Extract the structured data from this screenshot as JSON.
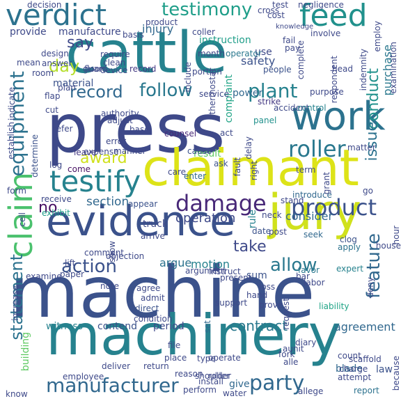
{
  "words": [
    {
      "text": "machine",
      "color": "#3b528b"
    },
    {
      "text": "press",
      "color": "#3e4989"
    },
    {
      "text": "cattle",
      "color": "#26828e"
    },
    {
      "text": "machinery",
      "color": "#26828e"
    },
    {
      "text": "claimant",
      "color": "#dde318"
    },
    {
      "text": "evidence",
      "color": "#3b528b"
    },
    {
      "text": "jury",
      "color": "#d0e11c"
    },
    {
      "text": "work",
      "color": "#2c728e"
    },
    {
      "text": "claim",
      "color": "#4ac16d"
    },
    {
      "text": "verdict",
      "color": "#2c728e"
    },
    {
      "text": "feed",
      "color": "#21918c"
    },
    {
      "text": "testify",
      "color": "#26828e"
    },
    {
      "text": "product",
      "color": "#3b528b"
    },
    {
      "text": "damage",
      "color": "#482878"
    },
    {
      "text": "manufacturer",
      "color": "#31688e"
    },
    {
      "text": "testimony",
      "color": "#1f9e89"
    },
    {
      "text": "roller",
      "color": "#2a788e"
    },
    {
      "text": "plant",
      "color": "#26828e"
    },
    {
      "text": "equipment",
      "color": "#2c728e"
    },
    {
      "text": "allow",
      "color": "#2a788e"
    },
    {
      "text": "party",
      "color": "#31688e"
    },
    {
      "text": "follow",
      "color": "#2a788e"
    },
    {
      "text": "record",
      "color": "#31688e"
    },
    {
      "text": "action",
      "color": "#3b528b"
    },
    {
      "text": "take",
      "color": "#3e4989"
    },
    {
      "text": "award",
      "color": "#d0e11c"
    },
    {
      "text": "conduct",
      "color": "#21918c"
    },
    {
      "text": "issue",
      "color": "#2c728e"
    },
    {
      "text": "feature",
      "color": "#31688e"
    },
    {
      "text": "statement",
      "color": "#2c728e"
    },
    {
      "text": "day",
      "color": "#b5de2b"
    },
    {
      "text": "say",
      "color": "#3e4989"
    },
    {
      "text": "no",
      "color": "#471063"
    },
    {
      "text": "contract",
      "color": "#2a788e"
    },
    {
      "text": "section",
      "color": "#31688e"
    },
    {
      "text": "purchase",
      "color": "#2a788e"
    },
    {
      "text": "operation",
      "color": "#3e4989"
    },
    {
      "text": "consider",
      "color": "#31688e"
    },
    {
      "text": "motion",
      "color": "#26828e"
    },
    {
      "text": "argue",
      "color": "#2c728e"
    },
    {
      "text": "agreement",
      "color": "#31688e"
    },
    {
      "text": "safety",
      "color": "#3b528b"
    },
    {
      "text": "complaint",
      "color": "#20a486"
    },
    {
      "text": "result",
      "color": "#5ec962"
    },
    {
      "text": "injury",
      "color": "#31688e"
    },
    {
      "text": "instruction",
      "color": "#1f9e89"
    },
    {
      "text": "provide",
      "color": "#3e4989"
    },
    {
      "text": "manufacture",
      "color": "#3e4989"
    },
    {
      "text": "rule",
      "color": "#26828e"
    },
    {
      "text": "witness",
      "color": "#26828e"
    },
    {
      "text": "contend",
      "color": "#3b528b"
    },
    {
      "text": "period",
      "color": "#3e4989"
    },
    {
      "text": "truck",
      "color": "#3e4989"
    },
    {
      "text": "sum",
      "color": "#3b528b"
    },
    {
      "text": "blade",
      "color": "#31688e"
    },
    {
      "text": "law",
      "color": "#3b528b"
    },
    {
      "text": "give",
      "color": "#31688e"
    },
    {
      "text": "set",
      "color": "#31688e"
    },
    {
      "text": "exhibit",
      "color": "#1f9e89"
    },
    {
      "text": "building",
      "color": "#5ec962"
    },
    {
      "text": "material",
      "color": "#3b528b"
    },
    {
      "text": "use",
      "color": "#3e4989"
    },
    {
      "text": "determine",
      "color": "#3b528b"
    },
    {
      "text": "record",
      "color": "#443983"
    },
    {
      "text": "power",
      "color": "#31688e"
    },
    {
      "text": "operator",
      "color": "#2a788e"
    },
    {
      "text": "people",
      "color": "#3b528b"
    },
    {
      "text": "report",
      "color": "#2c728e"
    },
    {
      "text": "accident",
      "color": "#3e4989"
    },
    {
      "text": "control",
      "color": "#26828e"
    },
    {
      "text": "involve",
      "color": "#3e4989"
    },
    {
      "text": "cause",
      "color": "#3b528b"
    },
    {
      "text": "counsel",
      "color": "#482878"
    },
    {
      "text": "leave",
      "color": "#443983"
    },
    {
      "text": "base",
      "color": "#3e4989"
    },
    {
      "text": "act",
      "color": "#3e4989"
    },
    {
      "text": "strike",
      "color": "#443983"
    },
    {
      "text": "panel",
      "color": "#21918c"
    },
    {
      "text": "come",
      "color": "#471063"
    },
    {
      "text": "log",
      "color": "#3e4989"
    },
    {
      "text": "enter",
      "color": "#31688e"
    },
    {
      "text": "ask",
      "color": "#3b528b"
    },
    {
      "text": "seek",
      "color": "#31688e"
    },
    {
      "text": "introduce",
      "color": "#31688e"
    },
    {
      "text": "post",
      "color": "#3e4989"
    },
    {
      "text": "date",
      "color": "#3b528b"
    },
    {
      "text": "clog",
      "color": "#3b528b"
    },
    {
      "text": "apply",
      "color": "#2c728e"
    },
    {
      "text": "expert",
      "color": "#26828e"
    },
    {
      "text": "favor",
      "color": "#2a788e"
    },
    {
      "text": "instruct",
      "color": "#3e4989"
    },
    {
      "text": "argument",
      "color": "#3e4989"
    },
    {
      "text": "appear",
      "color": "#3b528b"
    },
    {
      "text": "arrive",
      "color": "#3e4989"
    },
    {
      "text": "paper",
      "color": "#3e4989"
    },
    {
      "text": "lift",
      "color": "#3e4989"
    },
    {
      "text": "note",
      "color": "#3e4989"
    },
    {
      "text": "agree",
      "color": "#3e4989"
    },
    {
      "text": "admit",
      "color": "#3e4989"
    },
    {
      "text": "direct",
      "color": "#3b528b"
    },
    {
      "text": "condition",
      "color": "#3e4989"
    },
    {
      "text": "support",
      "color": "#3e4989"
    },
    {
      "text": "hand",
      "color": "#3e4989"
    },
    {
      "text": "loss",
      "color": "#3e4989"
    },
    {
      "text": "prove",
      "color": "#3e4989"
    },
    {
      "text": "bar",
      "color": "#3e4989"
    },
    {
      "text": "liability",
      "color": "#20a486"
    },
    {
      "text": "request",
      "color": "#3e4989"
    },
    {
      "text": "labor",
      "color": "#3e4989"
    },
    {
      "text": "deny",
      "color": "#3e4989"
    },
    {
      "text": "file",
      "color": "#3e4989"
    },
    {
      "text": "place",
      "color": "#3e4989"
    },
    {
      "text": "type",
      "color": "#3e4989"
    },
    {
      "text": "count",
      "color": "#3e4989"
    },
    {
      "text": "charge",
      "color": "#3e4989"
    },
    {
      "text": "diary",
      "color": "#3e4989"
    },
    {
      "text": "attempt",
      "color": "#3e4989"
    },
    {
      "text": "deliver",
      "color": "#3e4989"
    },
    {
      "text": "return",
      "color": "#3e4989"
    },
    {
      "text": "reason",
      "color": "#3e4989"
    },
    {
      "text": "shoulder",
      "color": "#3e4989"
    },
    {
      "text": "operate",
      "color": "#3e4989"
    },
    {
      "text": "allege",
      "color": "#3e4989"
    },
    {
      "text": "perform",
      "color": "#3e4989"
    },
    {
      "text": "water",
      "color": "#3e4989"
    },
    {
      "text": "plan",
      "color": "#3e4989"
    },
    {
      "text": "design",
      "color": "#3e4989"
    },
    {
      "text": "require",
      "color": "#3e4989"
    },
    {
      "text": "clean",
      "color": "#3e4989"
    },
    {
      "text": "device",
      "color": "#3e4989"
    },
    {
      "text": "include",
      "color": "#3e4989"
    },
    {
      "text": "portion",
      "color": "#3e4989"
    },
    {
      "text": "month",
      "color": "#3e4989"
    },
    {
      "text": "service",
      "color": "#3e4989"
    },
    {
      "text": "coller",
      "color": "#3e4989"
    },
    {
      "text": "pay",
      "color": "#3e4989"
    },
    {
      "text": "fail",
      "color": "#3e4989"
    },
    {
      "text": "complete",
      "color": "#3e4989"
    },
    {
      "text": "respondent",
      "color": "#3e4989"
    },
    {
      "text": "head",
      "color": "#3e4989"
    },
    {
      "text": "indemnity",
      "color": "#3e4989"
    },
    {
      "text": "purpose",
      "color": "#3e4989"
    },
    {
      "text": "thermostat",
      "color": "#3e4989"
    },
    {
      "text": "employ",
      "color": "#3e4989"
    },
    {
      "text": "examination",
      "color": "#3e4989"
    },
    {
      "text": "basis",
      "color": "#3e4989"
    },
    {
      "text": "test",
      "color": "#3e4989"
    },
    {
      "text": "negligence",
      "color": "#3e4989"
    },
    {
      "text": "cross",
      "color": "#3e4989"
    },
    {
      "text": "decision",
      "color": "#3e4989"
    },
    {
      "text": "indicate",
      "color": "#3e4989"
    },
    {
      "text": "establish",
      "color": "#3e4989"
    },
    {
      "text": "authority",
      "color": "#3e4989"
    },
    {
      "text": "adjust",
      "color": "#3e4989"
    },
    {
      "text": "error",
      "color": "#3e4989"
    },
    {
      "text": "delay",
      "color": "#3e4989"
    },
    {
      "text": "fault",
      "color": "#3e4989"
    },
    {
      "text": "right",
      "color": "#3e4989"
    },
    {
      "text": "matter",
      "color": "#3e4989"
    },
    {
      "text": "hour",
      "color": "#3e4989"
    },
    {
      "text": "go",
      "color": "#3e4989"
    },
    {
      "text": "form",
      "color": "#3e4989"
    },
    {
      "text": "present",
      "color": "#3e4989"
    },
    {
      "text": "fork",
      "color": "#3e4989"
    },
    {
      "text": "employee",
      "color": "#3e4989"
    },
    {
      "text": "scaffold",
      "color": "#3e4989"
    },
    {
      "text": "because",
      "color": "#3e4989"
    },
    {
      "text": "know",
      "color": "#3e4989"
    },
    {
      "text": "increase",
      "color": "#3e4989"
    },
    {
      "text": "examine",
      "color": "#3e4989"
    },
    {
      "text": "show",
      "color": "#3e4989"
    },
    {
      "text": "neck",
      "color": "#3e4989"
    },
    {
      "text": "receive",
      "color": "#3e4989"
    },
    {
      "text": "knowledge",
      "color": "#3e4989"
    },
    {
      "text": "mean",
      "color": "#3e4989"
    },
    {
      "text": "cell",
      "color": "#3e4989"
    },
    {
      "text": "house",
      "color": "#3e4989"
    },
    {
      "text": "grant",
      "color": "#3e4989"
    },
    {
      "text": "stand",
      "color": "#3e4989"
    },
    {
      "text": "comment",
      "color": "#3e4989"
    },
    {
      "text": "objection",
      "color": "#3e4989"
    },
    {
      "text": "install",
      "color": "#3e4989"
    },
    {
      "text": "guard",
      "color": "#3e4989"
    },
    {
      "text": "floor",
      "color": "#3e4989"
    },
    {
      "text": "flap",
      "color": "#3e4989"
    },
    {
      "text": "care",
      "color": "#3e4989"
    },
    {
      "text": "term",
      "color": "#3e4989"
    },
    {
      "text": "expense",
      "color": "#3e4989"
    },
    {
      "text": "manner",
      "color": "#3e4989"
    },
    {
      "text": "refer",
      "color": "#3e4989"
    },
    {
      "text": "product",
      "color": "#3e4989"
    },
    {
      "text": "room",
      "color": "#3e4989"
    },
    {
      "text": "answer",
      "color": "#3e4989"
    },
    {
      "text": "cut",
      "color": "#3e4989"
    },
    {
      "text": "aunit",
      "color": "#3e4989"
    },
    {
      "text": "alle",
      "color": "#3e4989"
    },
    {
      "text": "roller",
      "color": "#3e4989"
    },
    {
      "text": "cost",
      "color": "#3e4989"
    }
  ]
}
